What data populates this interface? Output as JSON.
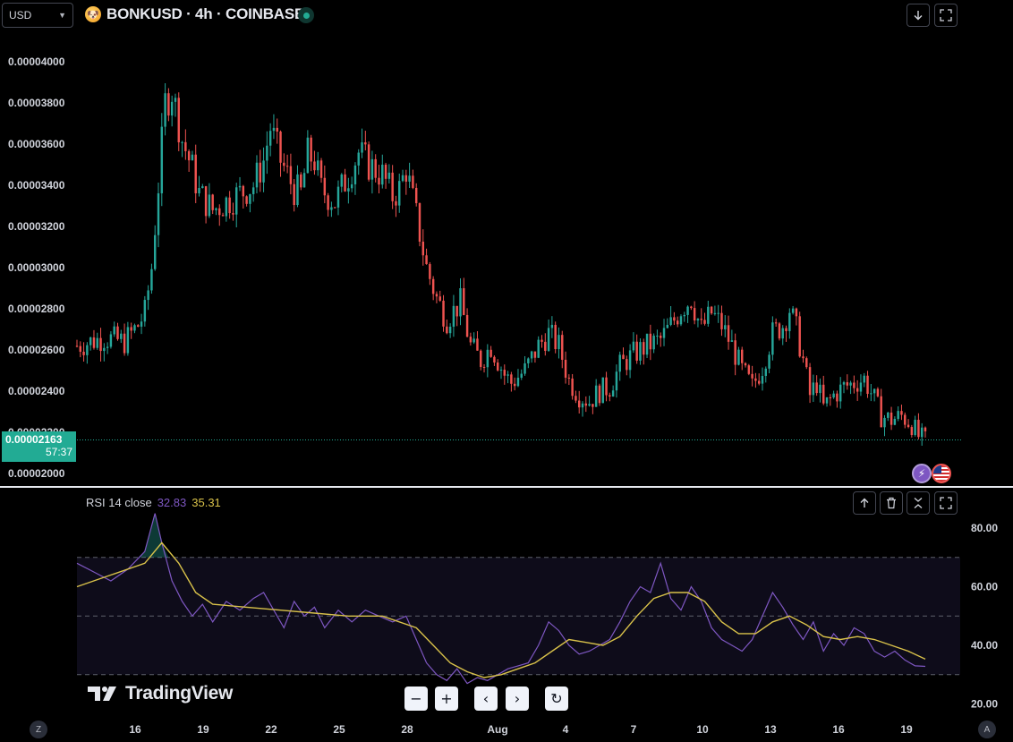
{
  "header": {
    "currency": "USD",
    "symbol_title": "BONKUSD · 4h · COINBASE",
    "status": "market-open"
  },
  "icons": {
    "logo": "bonk-coin-icon",
    "download": "arrow-down-icon",
    "fullscreen": "fullscreen-icon",
    "lightning": "lightning-icon",
    "flag": "us-flag-icon"
  },
  "price_tag": {
    "price": "0.00002163",
    "countdown": "57:37"
  },
  "rsi": {
    "label": "RSI 14 close",
    "rsi_value": "32.83",
    "ma_value": "35.31"
  },
  "watermark": "TradingView",
  "nav_buttons": [
    "−",
    "+",
    "‹",
    "›",
    "↻"
  ],
  "corner_buttons": {
    "left": "Z",
    "right": "A"
  },
  "colors": {
    "up": "#26a69a",
    "down": "#ef5350",
    "rsi_line": "#7e57c2",
    "rsi_ma": "#d9c24a",
    "price_tag": "#22ab94"
  },
  "chart_data": [
    {
      "type": "candlestick",
      "title": "BONKUSD · 4h · COINBASE",
      "x_ticks": [
        "16",
        "19",
        "22",
        "25",
        "28",
        "Aug",
        "4",
        "7",
        "10",
        "13",
        "16",
        "19"
      ],
      "y_ticks": [
        "0.00004000",
        "0.00003800",
        "0.00003600",
        "0.00003400",
        "0.00003200",
        "0.00003000",
        "0.00002800",
        "0.00002600",
        "0.00002400",
        "0.00002200",
        "0.00002000"
      ],
      "ylim": [
        1.95e-05,
        4.2e-05
      ],
      "last_price": 2.163e-05,
      "close_path": [
        [
          0,
          2.62e-05
        ],
        [
          8,
          2.66e-05
        ],
        [
          14,
          2.64e-05
        ],
        [
          18,
          2.72e-05
        ],
        [
          20,
          2.78e-05
        ],
        [
          22,
          3e-05
        ],
        [
          24,
          3.4e-05
        ],
        [
          26,
          3.8e-05
        ],
        [
          28,
          3.86e-05
        ],
        [
          31,
          3.62e-05
        ],
        [
          34,
          3.48e-05
        ],
        [
          36,
          3.36e-05
        ],
        [
          40,
          3.28e-05
        ],
        [
          44,
          3.32e-05
        ],
        [
          48,
          3.36e-05
        ],
        [
          52,
          3.4e-05
        ],
        [
          55,
          3.52e-05
        ],
        [
          57,
          3.68e-05
        ],
        [
          60,
          3.52e-05
        ],
        [
          62,
          3.45e-05
        ],
        [
          64,
          3.38e-05
        ],
        [
          66,
          3.36e-05
        ],
        [
          68,
          3.55e-05
        ],
        [
          70,
          3.52e-05
        ],
        [
          72,
          3.38e-05
        ],
        [
          76,
          3.32e-05
        ],
        [
          80,
          3.45e-05
        ],
        [
          83,
          3.56e-05
        ],
        [
          86,
          3.5e-05
        ],
        [
          90,
          3.45e-05
        ],
        [
          93,
          3.35e-05
        ],
        [
          95,
          3.38e-05
        ],
        [
          97,
          3.48e-05
        ],
        [
          100,
          3.25e-05
        ],
        [
          103,
          3e-05
        ],
        [
          106,
          2.85e-05
        ],
        [
          109,
          2.75e-05
        ],
        [
          113,
          2.83e-05
        ],
        [
          116,
          2.62e-05
        ],
        [
          119,
          2.55e-05
        ],
        [
          122,
          2.62e-05
        ],
        [
          126,
          2.48e-05
        ],
        [
          128,
          2.44e-05
        ],
        [
          132,
          2.5e-05
        ],
        [
          136,
          2.62e-05
        ],
        [
          139,
          2.68e-05
        ],
        [
          142,
          2.62e-05
        ],
        [
          145,
          2.45e-05
        ],
        [
          148,
          2.38e-05
        ],
        [
          151,
          2.35e-05
        ],
        [
          154,
          2.4e-05
        ],
        [
          157,
          2.42e-05
        ],
        [
          160,
          2.52e-05
        ],
        [
          164,
          2.58e-05
        ],
        [
          168,
          2.62e-05
        ],
        [
          172,
          2.65e-05
        ],
        [
          175,
          2.72e-05
        ],
        [
          178,
          2.8e-05
        ],
        [
          181,
          2.85e-05
        ],
        [
          184,
          2.7e-05
        ],
        [
          187,
          2.78e-05
        ],
        [
          190,
          2.72e-05
        ],
        [
          193,
          2.62e-05
        ],
        [
          196,
          2.5e-05
        ],
        [
          199,
          2.42e-05
        ],
        [
          202,
          2.52e-05
        ],
        [
          205,
          2.68e-05
        ],
        [
          208,
          2.72e-05
        ],
        [
          210,
          2.8e-05
        ],
        [
          212,
          2.7e-05
        ],
        [
          214,
          2.55e-05
        ],
        [
          216,
          2.38e-05
        ],
        [
          218,
          2.44e-05
        ],
        [
          220,
          2.32e-05
        ],
        [
          223,
          2.38e-05
        ],
        [
          226,
          2.42e-05
        ],
        [
          229,
          2.44e-05
        ],
        [
          232,
          2.46e-05
        ],
        [
          235,
          2.36e-05
        ],
        [
          237,
          2.28e-05
        ],
        [
          240,
          2.26e-05
        ],
        [
          243,
          2.28e-05
        ],
        [
          246,
          2.24e-05
        ],
        [
          248,
          2.18e-05
        ],
        [
          250,
          2.16e-05
        ]
      ]
    },
    {
      "type": "line",
      "title": "RSI 14 close",
      "y_ticks": [
        "80.00",
        "60.00",
        "40.00",
        "20.00"
      ],
      "ylim": [
        18,
        90
      ],
      "bands": [
        70,
        50,
        30
      ],
      "series": [
        {
          "name": "RSI 14 close",
          "color": "#7e57c2",
          "points": [
            [
              0,
              68
            ],
            [
              5,
              65
            ],
            [
              10,
              62
            ],
            [
              15,
              66
            ],
            [
              20,
              72
            ],
            [
              23,
              85
            ],
            [
              25,
              75
            ],
            [
              28,
              62
            ],
            [
              31,
              55
            ],
            [
              34,
              50
            ],
            [
              37,
              54
            ],
            [
              40,
              48
            ],
            [
              44,
              55
            ],
            [
              48,
              52
            ],
            [
              52,
              56
            ],
            [
              55,
              58
            ],
            [
              58,
              52
            ],
            [
              61,
              46
            ],
            [
              64,
              55
            ],
            [
              67,
              50
            ],
            [
              70,
              53
            ],
            [
              73,
              46
            ],
            [
              77,
              52
            ],
            [
              81,
              48
            ],
            [
              85,
              52
            ],
            [
              89,
              50
            ],
            [
              93,
              48
            ],
            [
              97,
              50
            ],
            [
              100,
              42
            ],
            [
              103,
              34
            ],
            [
              106,
              30
            ],
            [
              109,
              28
            ],
            [
              112,
              32
            ],
            [
              115,
              27
            ],
            [
              118,
              29
            ],
            [
              121,
              28
            ],
            [
              124,
              30
            ],
            [
              127,
              32
            ],
            [
              130,
              33
            ],
            [
              133,
              34
            ],
            [
              136,
              40
            ],
            [
              139,
              48
            ],
            [
              142,
              45
            ],
            [
              145,
              40
            ],
            [
              148,
              37
            ],
            [
              151,
              38
            ],
            [
              154,
              40
            ],
            [
              157,
              42
            ],
            [
              160,
              48
            ],
            [
              163,
              55
            ],
            [
              166,
              60
            ],
            [
              169,
              58
            ],
            [
              172,
              68
            ],
            [
              175,
              56
            ],
            [
              178,
              52
            ],
            [
              181,
              60
            ],
            [
              184,
              55
            ],
            [
              187,
              46
            ],
            [
              190,
              42
            ],
            [
              193,
              40
            ],
            [
              196,
              38
            ],
            [
              199,
              42
            ],
            [
              202,
              50
            ],
            [
              205,
              58
            ],
            [
              208,
              53
            ],
            [
              211,
              47
            ],
            [
              214,
              42
            ],
            [
              217,
              48
            ],
            [
              220,
              38
            ],
            [
              223,
              44
            ],
            [
              226,
              40
            ],
            [
              229,
              46
            ],
            [
              232,
              44
            ],
            [
              235,
              38
            ],
            [
              238,
              36
            ],
            [
              241,
              38
            ],
            [
              244,
              35
            ],
            [
              247,
              33
            ],
            [
              250,
              32.83
            ]
          ]
        },
        {
          "name": "RSI MA",
          "color": "#d9c24a",
          "points": [
            [
              0,
              60
            ],
            [
              10,
              64
            ],
            [
              20,
              68
            ],
            [
              25,
              75
            ],
            [
              30,
              68
            ],
            [
              35,
              58
            ],
            [
              40,
              54
            ],
            [
              50,
              53
            ],
            [
              60,
              52
            ],
            [
              70,
              51
            ],
            [
              80,
              50
            ],
            [
              90,
              50
            ],
            [
              100,
              46
            ],
            [
              105,
              40
            ],
            [
              110,
              34
            ],
            [
              115,
              31
            ],
            [
              120,
              29
            ],
            [
              125,
              30
            ],
            [
              130,
              32
            ],
            [
              135,
              34
            ],
            [
              140,
              38
            ],
            [
              145,
              42
            ],
            [
              150,
              41
            ],
            [
              155,
              40
            ],
            [
              160,
              43
            ],
            [
              165,
              50
            ],
            [
              170,
              56
            ],
            [
              175,
              58
            ],
            [
              180,
              58
            ],
            [
              185,
              55
            ],
            [
              190,
              48
            ],
            [
              195,
              44
            ],
            [
              200,
              44
            ],
            [
              205,
              48
            ],
            [
              210,
              50
            ],
            [
              215,
              47
            ],
            [
              220,
              43
            ],
            [
              225,
              42
            ],
            [
              230,
              43
            ],
            [
              235,
              42
            ],
            [
              240,
              40
            ],
            [
              245,
              38
            ],
            [
              250,
              35.31
            ]
          ]
        }
      ]
    }
  ]
}
